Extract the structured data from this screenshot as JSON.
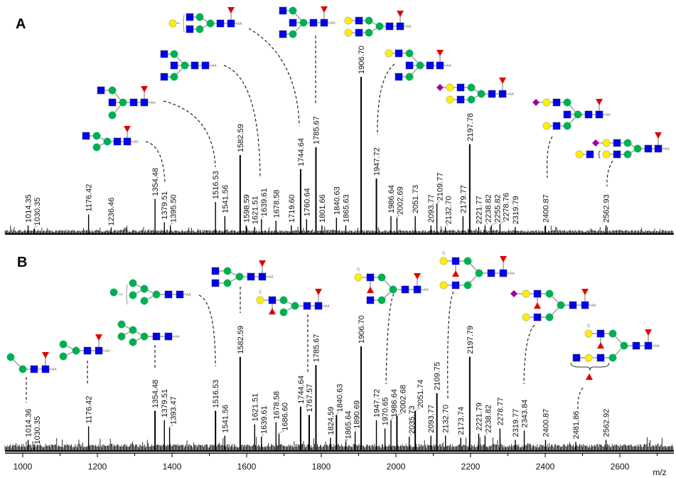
{
  "colors": {
    "glcnac": "#0000f0",
    "mannose": "#00b050",
    "galactose": "#ffee00",
    "fucose": "#e00000",
    "sialic_acid": "#a000a0",
    "spectrum": "#000000",
    "link": "#8a8a8a"
  },
  "glycan_terminal_label": "AA",
  "sulfate_label": "S",
  "bracket_label": "{",
  "chart_data": [
    {
      "type": "bar",
      "panel": "A",
      "xlim": [
        952,
        2748
      ],
      "ylabel": "",
      "xlabel": "",
      "peaks": [
        {
          "mz": 1014.35,
          "label": "1014.35",
          "rel": 5
        },
        {
          "mz": 1030.35,
          "label": "1030.35",
          "rel": 3
        },
        {
          "mz": 1176.42,
          "label": "1176.42",
          "rel": 12
        },
        {
          "mz": 1236.46,
          "label": "1236.46",
          "rel": 3
        },
        {
          "mz": 1354.48,
          "label": "1354.48",
          "rel": 22
        },
        {
          "mz": 1379.51,
          "label": "1379.51",
          "rel": 7
        },
        {
          "mz": 1395.5,
          "label": "1395.50",
          "rel": 5
        },
        {
          "mz": 1516.53,
          "label": "1516.53",
          "rel": 20
        },
        {
          "mz": 1541.56,
          "label": "1541.56",
          "rel": 11
        },
        {
          "mz": 1582.59,
          "label": "1582.59",
          "rel": 50
        },
        {
          "mz": 1598.59,
          "label": "1598.59",
          "rel": 5
        },
        {
          "mz": 1621.51,
          "label": "1621.51",
          "rel": 4
        },
        {
          "mz": 1639.61,
          "label": "1639.61",
          "rel": 9
        },
        {
          "mz": 1678.58,
          "label": "1678.58",
          "rel": 8
        },
        {
          "mz": 1719.6,
          "label": "1719.60",
          "rel": 5
        },
        {
          "mz": 1744.64,
          "label": "1744.64",
          "rel": 41
        },
        {
          "mz": 1760.64,
          "label": "1760.64",
          "rel": 9
        },
        {
          "mz": 1785.67,
          "label": "1785.67",
          "rel": 55
        },
        {
          "mz": 1801.66,
          "label": "1801.66",
          "rel": 5
        },
        {
          "mz": 1840.63,
          "label": "1840.63",
          "rel": 10
        },
        {
          "mz": 1865.63,
          "label": "1865.63",
          "rel": 5
        },
        {
          "mz": 1906.7,
          "label": "1906.70",
          "rel": 100
        },
        {
          "mz": 1947.72,
          "label": "1947.72",
          "rel": 35
        },
        {
          "mz": 1986.64,
          "label": "1986.64",
          "rel": 11
        },
        {
          "mz": 2002.69,
          "label": "2002.69",
          "rel": 10
        },
        {
          "mz": 2051.73,
          "label": "2051.73",
          "rel": 11
        },
        {
          "mz": 2093.77,
          "label": "2093.77",
          "rel": 5
        },
        {
          "mz": 2109.77,
          "label": "2109.77",
          "rel": 19
        },
        {
          "mz": 2132.7,
          "label": "2132.70",
          "rel": 4
        },
        {
          "mz": 2179.77,
          "label": "2179.77",
          "rel": 11
        },
        {
          "mz": 2197.78,
          "label": "2197.78",
          "rel": 57
        },
        {
          "mz": 2221.77,
          "label": "2221.77",
          "rel": 4
        },
        {
          "mz": 2238.82,
          "label": "2238.82",
          "rel": 5
        },
        {
          "mz": 2255.82,
          "label": "2255.82",
          "rel": 5
        },
        {
          "mz": 2278.76,
          "label": "2278.76",
          "rel": 6
        },
        {
          "mz": 2319.79,
          "label": "2319.79",
          "rel": 4
        },
        {
          "mz": 2400.87,
          "label": "2400.87",
          "rel": 5
        },
        {
          "mz": 2562.93,
          "label": "2562.93",
          "rel": 5
        }
      ]
    },
    {
      "type": "bar",
      "panel": "B",
      "xlim": [
        952,
        2748
      ],
      "xlabel": "m/z",
      "xticks": [
        1000,
        1200,
        1400,
        1600,
        1800,
        2000,
        2200,
        2400,
        2600
      ],
      "peaks": [
        {
          "mz": 1014.36,
          "label": "1014.36",
          "rel": 10
        },
        {
          "mz": 1030.35,
          "label": "1030.35",
          "rel": 3
        },
        {
          "mz": 1176.42,
          "label": "1176.42",
          "rel": 23
        },
        {
          "mz": 1354.48,
          "label": "1354.48",
          "rel": 38
        },
        {
          "mz": 1379.51,
          "label": "1379.51",
          "rel": 29
        },
        {
          "mz": 1393.47,
          "label": "1393.47",
          "rel": 22
        },
        {
          "mz": 1516.53,
          "label": "1516.53",
          "rel": 38
        },
        {
          "mz": 1541.56,
          "label": "1541.56",
          "rel": 14
        },
        {
          "mz": 1582.59,
          "label": "1582.59",
          "rel": 90
        },
        {
          "mz": 1621.51,
          "label": "1621.51",
          "rel": 25
        },
        {
          "mz": 1639.61,
          "label": "1639.61",
          "rel": 13
        },
        {
          "mz": 1678.58,
          "label": "1678.58",
          "rel": 27
        },
        {
          "mz": 1686.6,
          "label": "1686.60",
          "rel": 16
        },
        {
          "mz": 1744.64,
          "label": "1744.64",
          "rel": 42
        },
        {
          "mz": 1767.57,
          "label": "1767.57",
          "rel": 34
        },
        {
          "mz": 1785.67,
          "label": "1785.67",
          "rel": 82
        },
        {
          "mz": 1824.59,
          "label": "1824.59",
          "rel": 12
        },
        {
          "mz": 1840.63,
          "label": "1840.63",
          "rel": 34
        },
        {
          "mz": 1865.64,
          "label": "1865.64",
          "rel": 8
        },
        {
          "mz": 1890.69,
          "label": "1890.69",
          "rel": 18
        },
        {
          "mz": 1906.7,
          "label": "1906.70",
          "rel": 100
        },
        {
          "mz": 1947.72,
          "label": "1947.72",
          "rel": 29
        },
        {
          "mz": 1970.65,
          "label": "1970.65",
          "rel": 21
        },
        {
          "mz": 1986.64,
          "label": "1986.64",
          "rel": 29
        },
        {
          "mz": 2002.68,
          "label": "2002.68",
          "rel": 33
        },
        {
          "mz": 2035.73,
          "label": "2035.73",
          "rel": 13
        },
        {
          "mz": 2051.74,
          "label": "2051.74",
          "rel": 38
        },
        {
          "mz": 2093.77,
          "label": "2093.77",
          "rel": 14
        },
        {
          "mz": 2109.75,
          "label": "2109.75",
          "rel": 55
        },
        {
          "mz": 2132.7,
          "label": "2132.70",
          "rel": 14
        },
        {
          "mz": 2173.74,
          "label": "2173.74",
          "rel": 12
        },
        {
          "mz": 2197.79,
          "label": "2197.79",
          "rel": 90
        },
        {
          "mz": 2221.79,
          "label": "2221.79",
          "rel": 16
        },
        {
          "mz": 2238.82,
          "label": "2238.82",
          "rel": 14
        },
        {
          "mz": 2278.77,
          "label": "2278.77",
          "rel": 21
        },
        {
          "mz": 2319.77,
          "label": "2319.77",
          "rel": 10
        },
        {
          "mz": 2343.84,
          "label": "2343.84",
          "rel": 19
        },
        {
          "mz": 2400.87,
          "label": "2400.87",
          "rel": 10
        },
        {
          "mz": 2481.86,
          "label": "2481.86",
          "rel": 8
        },
        {
          "mz": 2562.92,
          "label": "2562.92",
          "rel": 10
        }
      ]
    }
  ],
  "panels": {
    "a_label": "A",
    "b_label": "B"
  }
}
